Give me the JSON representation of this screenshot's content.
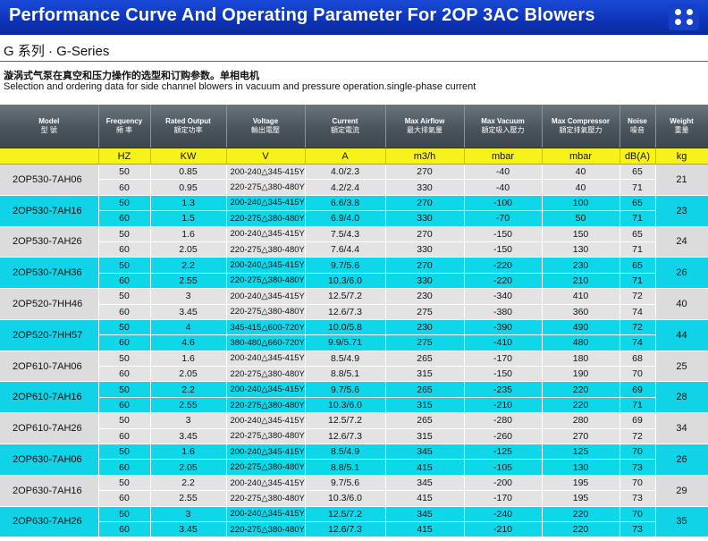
{
  "header": {
    "title": "Performance Curve And Operating Parameter For 2OP 3AC Blowers"
  },
  "series_title": "G 系列 · G-Series",
  "description_cn": "漩涡式气泵在真空和压力操作的选型和订购参数。单相电机",
  "description_en": "Selection and ordering data for side channel blowers in vacuum and pressure operation.single-phase current",
  "table": {
    "columns": [
      {
        "en": "Model",
        "cn": "型  號"
      },
      {
        "en": "Frequency",
        "cn": "頻  率"
      },
      {
        "en": "Rated Output",
        "cn": "額定功率"
      },
      {
        "en": "Voltage",
        "cn": "輸出電壓"
      },
      {
        "en": "Current",
        "cn": "額定電流"
      },
      {
        "en": "Max Airflow",
        "cn": "最大排氣量"
      },
      {
        "en": "Max Vacuum",
        "cn": "額定吸入壓力"
      },
      {
        "en": "Max Compressor",
        "cn": "額定排氣壓力"
      },
      {
        "en": "Noise",
        "cn": "噪音"
      },
      {
        "en": "Weight",
        "cn": "重量"
      }
    ],
    "units": [
      "",
      "HZ",
      "KW",
      "V",
      "A",
      "m3/h",
      "mbar",
      "mbar",
      "dB(A)",
      "kg"
    ],
    "groups": [
      {
        "model": "2OP530-7AH06",
        "weight": "21",
        "rows": [
          [
            "50",
            "0.85",
            "200-240△345-415Y",
            "4.0/2.3",
            "270",
            "-40",
            "40",
            "65"
          ],
          [
            "60",
            "0.95",
            "220-275△380-480Y",
            "4.2/2.4",
            "330",
            "-40",
            "40",
            "71"
          ]
        ]
      },
      {
        "model": "2OP530-7AH16",
        "weight": "23",
        "rows": [
          [
            "50",
            "1.3",
            "200-240△345-415Y",
            "6.6/3.8",
            "270",
            "-100",
            "100",
            "65"
          ],
          [
            "60",
            "1.5",
            "220-275△380-480Y",
            "6.9/4.0",
            "330",
            "-70",
            "50",
            "71"
          ]
        ]
      },
      {
        "model": "2OP530-7AH26",
        "weight": "24",
        "rows": [
          [
            "50",
            "1.6",
            "200-240△345-415Y",
            "7.5/4.3",
            "270",
            "-150",
            "150",
            "65"
          ],
          [
            "60",
            "2.05",
            "220-275△380-480Y",
            "7.6/4.4",
            "330",
            "-150",
            "130",
            "71"
          ]
        ]
      },
      {
        "model": "2OP530-7AH36",
        "weight": "26",
        "rows": [
          [
            "50",
            "2.2",
            "200-240△345-415Y",
            "9.7/5.6",
            "270",
            "-220",
            "230",
            "65"
          ],
          [
            "60",
            "2.55",
            "220-275△380-480Y",
            "10.3/6.0",
            "330",
            "-220",
            "210",
            "71"
          ]
        ]
      },
      {
        "model": "2OP520-7HH46",
        "weight": "40",
        "rows": [
          [
            "50",
            "3",
            "200-240△345-415Y",
            "12.5/7.2",
            "230",
            "-340",
            "410",
            "72"
          ],
          [
            "60",
            "3.45",
            "220-275△380-480Y",
            "12.6/7.3",
            "275",
            "-380",
            "360",
            "74"
          ]
        ]
      },
      {
        "model": "2OP520-7HH57",
        "weight": "44",
        "rows": [
          [
            "50",
            "4",
            "345-415△600-720Y",
            "10.0/5.8",
            "230",
            "-390",
            "490",
            "72"
          ],
          [
            "60",
            "4.6",
            "380-480△660-720Y",
            "9.9/5.71",
            "275",
            "-410",
            "480",
            "74"
          ]
        ]
      },
      {
        "model": "2OP610-7AH06",
        "weight": "25",
        "rows": [
          [
            "50",
            "1.6",
            "200-240△345-415Y",
            "8.5/4.9",
            "265",
            "-170",
            "180",
            "68"
          ],
          [
            "60",
            "2.05",
            "220-275△380-480Y",
            "8.8/5.1",
            "315",
            "-150",
            "190",
            "70"
          ]
        ]
      },
      {
        "model": "2OP610-7AH16",
        "weight": "28",
        "rows": [
          [
            "50",
            "2.2",
            "200-240△345-415Y",
            "9.7/5.6",
            "265",
            "-235",
            "220",
            "69"
          ],
          [
            "60",
            "2.55",
            "220-275△380-480Y",
            "10.3/6.0",
            "315",
            "-210",
            "220",
            "71"
          ]
        ]
      },
      {
        "model": "2OP610-7AH26",
        "weight": "34",
        "rows": [
          [
            "50",
            "3",
            "200-240△345-415Y",
            "12.5/7.2",
            "265",
            "-280",
            "280",
            "69"
          ],
          [
            "60",
            "3.45",
            "220-275△380-480Y",
            "12.6/7.3",
            "315",
            "-260",
            "270",
            "72"
          ]
        ]
      },
      {
        "model": "2OP630-7AH06",
        "weight": "26",
        "rows": [
          [
            "50",
            "1.6",
            "200-240△345-415Y",
            "8.5/4.9",
            "345",
            "-125",
            "125",
            "70"
          ],
          [
            "60",
            "2.05",
            "220-275△380-480Y",
            "8.8/5.1",
            "415",
            "-105",
            "130",
            "73"
          ]
        ]
      },
      {
        "model": "2OP630-7AH16",
        "weight": "29",
        "rows": [
          [
            "50",
            "2.2",
            "200-240△345-415Y",
            "9.7/5.6",
            "345",
            "-200",
            "195",
            "70"
          ],
          [
            "60",
            "2.55",
            "220-275△380-480Y",
            "10.3/6.0",
            "415",
            "-170",
            "195",
            "73"
          ]
        ]
      },
      {
        "model": "2OP630-7AH26",
        "weight": "35",
        "rows": [
          [
            "50",
            "3",
            "200-240△345-415Y",
            "12.5/7.2",
            "345",
            "-240",
            "220",
            "70"
          ],
          [
            "60",
            "3.45",
            "220-275△380-480Y",
            "12.6/7.3",
            "415",
            "-210",
            "220",
            "73"
          ]
        ]
      }
    ]
  },
  "colors": {
    "banner": "#0d33b8",
    "header_gray": "#4a545c",
    "units_yellow": "#f6f21a",
    "row_light": "#e3e3e4",
    "row_cyan": "#0fd7ea"
  },
  "icons": {
    "menu": "four-dot-menu-icon"
  }
}
